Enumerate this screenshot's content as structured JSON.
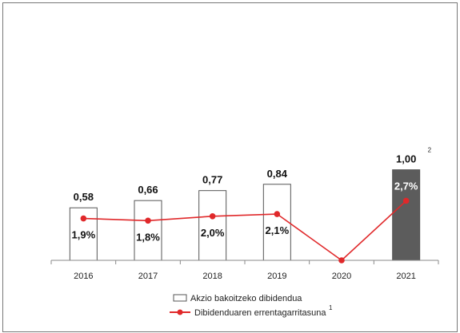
{
  "chart_data": {
    "type": "bar",
    "categories": [
      "2016",
      "2017",
      "2018",
      "2019",
      "2020",
      "2021"
    ],
    "series": [
      {
        "name": "Akzio bakoitzeko dibidendua",
        "kind": "bar",
        "values": [
          0.58,
          0.66,
          0.77,
          0.84,
          null,
          1.0
        ],
        "labels": [
          "0,58",
          "0,66",
          "0,77",
          "0,84",
          "",
          "1,00"
        ],
        "label_superscripts": [
          "",
          "",
          "",
          "",
          "",
          "2"
        ],
        "fill": [
          "#ffffff",
          "#ffffff",
          "#ffffff",
          "#ffffff",
          "#ffffff",
          "#5c5c5c"
        ],
        "outline": "#555555"
      },
      {
        "name": "Dibidenduaren errentagarritasuna",
        "name_superscript": "1",
        "kind": "line",
        "values": [
          1.9,
          1.8,
          2.0,
          2.1,
          0.0,
          2.7
        ],
        "labels": [
          "1,9%",
          "1,8%",
          "2,0%",
          "2,1%",
          "",
          "2,7%"
        ],
        "color": "#e0282a"
      }
    ],
    "bar_ylim": [
      0,
      1.12
    ],
    "line_ylim": [
      0,
      4.6
    ],
    "legend": "bottom"
  }
}
